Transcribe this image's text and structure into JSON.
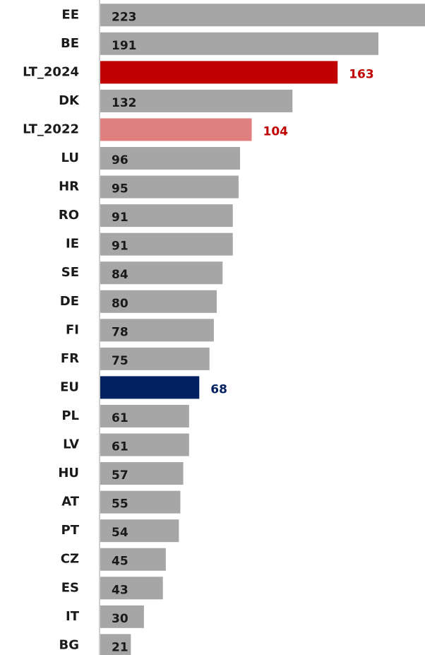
{
  "chart_data": {
    "type": "barh",
    "categories": [
      "EE",
      "BE",
      "LT_2024",
      "DK",
      "LT_2022",
      "LU",
      "HR",
      "RO",
      "IE",
      "SE",
      "DE",
      "FI",
      "FR",
      "EU",
      "PL",
      "LV",
      "HU",
      "AT",
      "PT",
      "CZ",
      "ES",
      "IT",
      "BG"
    ],
    "values": [
      223,
      191,
      163,
      132,
      104,
      96,
      95,
      91,
      91,
      84,
      80,
      78,
      75,
      68,
      61,
      61,
      57,
      55,
      54,
      45,
      43,
      30,
      21
    ],
    "color": "#a6a6a6",
    "colors": [
      "#a6a6a6",
      "#a6a6a6",
      "#c00000",
      "#a6a6a6",
      "#e07f7f",
      "#a6a6a6",
      "#a6a6a6",
      "#a6a6a6",
      "#a6a6a6",
      "#a6a6a6",
      "#a6a6a6",
      "#a6a6a6",
      "#a6a6a6",
      "#002060",
      "#a6a6a6",
      "#a6a6a6",
      "#a6a6a6",
      "#a6a6a6",
      "#a6a6a6",
      "#a6a6a6",
      "#a6a6a6",
      "#a6a6a6",
      "#a6a6a6"
    ],
    "value_label_colors": [
      "#1a1a1a",
      "#1a1a1a",
      "#c00000",
      "#1a1a1a",
      "#c00000",
      "#1a1a1a",
      "#1a1a1a",
      "#1a1a1a",
      "#1a1a1a",
      "#1a1a1a",
      "#1a1a1a",
      "#1a1a1a",
      "#1a1a1a",
      "#002060",
      "#1a1a1a",
      "#1a1a1a",
      "#1a1a1a",
      "#1a1a1a",
      "#1a1a1a",
      "#1a1a1a",
      "#1a1a1a",
      "#1a1a1a",
      "#1a1a1a"
    ],
    "xlim": [
      0,
      223
    ]
  }
}
